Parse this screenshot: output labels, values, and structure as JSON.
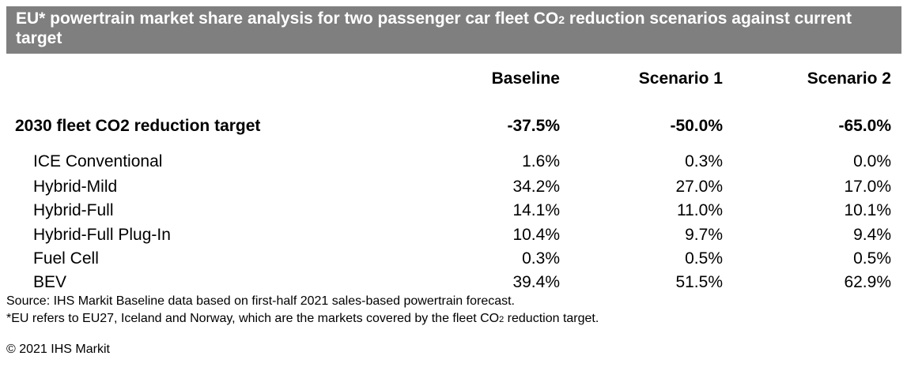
{
  "title": {
    "pre": "EU* powertrain market share analysis for two passenger car fleet CO",
    "sub": "2",
    "post": " reduction scenarios against current target"
  },
  "chart_data": {
    "type": "table",
    "columns": [
      "Baseline",
      "Scenario 1",
      "Scenario 2"
    ],
    "target_row": {
      "label": "2030 fleet CO2 reduction target",
      "values": [
        "-37.5%",
        "-50.0%",
        "-65.0%"
      ]
    },
    "rows": [
      {
        "label": "ICE Conventional",
        "values": [
          "1.6%",
          "0.3%",
          "0.0%"
        ]
      },
      {
        "label": "Hybrid-Mild",
        "values": [
          "34.2%",
          "27.0%",
          "17.0%"
        ]
      },
      {
        "label": "Hybrid-Full",
        "values": [
          "14.1%",
          "11.0%",
          "10.1%"
        ]
      },
      {
        "label": "Hybrid-Full Plug-In",
        "values": [
          "10.4%",
          "9.7%",
          "9.4%"
        ]
      },
      {
        "label": "Fuel Cell",
        "values": [
          "0.3%",
          "0.5%",
          "0.5%"
        ]
      },
      {
        "label": "BEV",
        "values": [
          "39.4%",
          "51.5%",
          "62.9%"
        ]
      }
    ]
  },
  "notes": {
    "source": "Source: IHS Markit Baseline data based on first-half 2021 sales-based powertrain forecast.",
    "eu_pre": "*EU refers to EU27, Iceland and Norway, which are the markets covered by the fleet CO",
    "eu_sub": "2",
    "eu_post": " reduction target.",
    "copyright": "© 2021 IHS Markit"
  }
}
